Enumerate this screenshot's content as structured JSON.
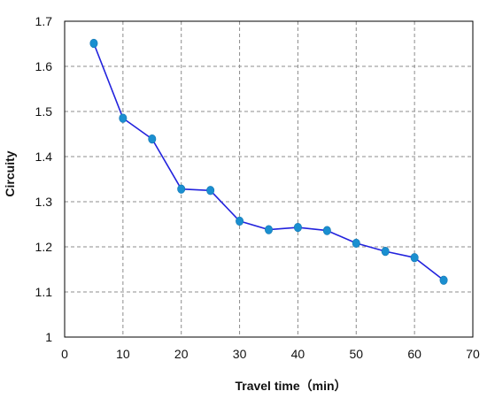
{
  "chart_data": {
    "type": "line",
    "title": "",
    "xlabel": "Travel time（min）",
    "ylabel": "Circuity",
    "xlim": [
      0,
      70
    ],
    "ylim": [
      1,
      1.7
    ],
    "xticks": [
      "0",
      "10",
      "20",
      "30",
      "40",
      "50",
      "60",
      "70"
    ],
    "yticks": [
      "1",
      "1.1",
      "1.2",
      "1.3",
      "1.4",
      "1.5",
      "1.6",
      "1.7"
    ],
    "grid": true,
    "legend": "none",
    "series": [
      {
        "x": [
          5,
          10,
          15,
          20,
          25,
          30,
          35,
          40,
          45,
          50,
          55,
          60,
          65
        ],
        "y": [
          1.651,
          1.485,
          1.439,
          1.328,
          1.325,
          1.257,
          1.238,
          1.243,
          1.236,
          1.208,
          1.19,
          1.176,
          1.126
        ],
        "line_color": "#2222dd",
        "marker_color": "#1a8fd0"
      }
    ]
  }
}
